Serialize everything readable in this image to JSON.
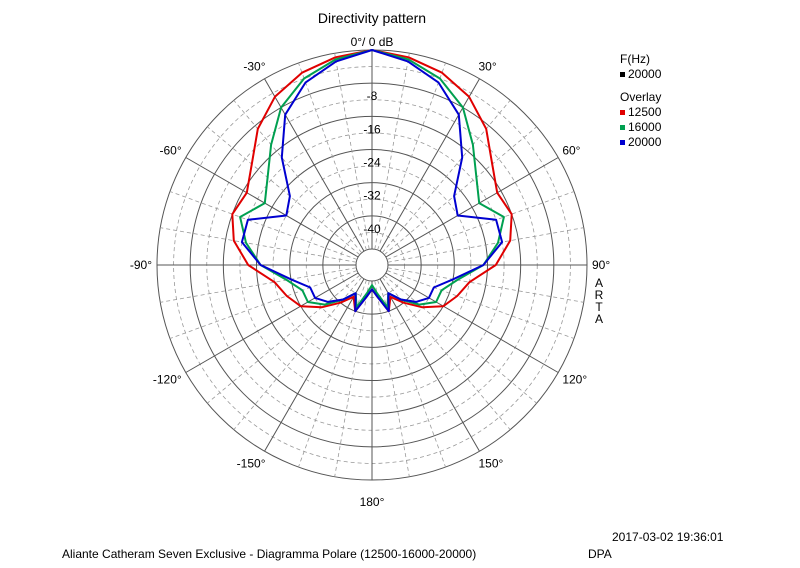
{
  "chart_data": {
    "type": "polar",
    "title": "Directivity pattern",
    "radial_unit": "dB",
    "radial_range": [
      -48,
      0
    ],
    "radial_ticks": [
      {
        "value": 0,
        "label": "0°/ 0 dB"
      },
      {
        "value": -8,
        "label": "-8"
      },
      {
        "value": -16,
        "label": "-16"
      },
      {
        "value": -24,
        "label": "-24"
      },
      {
        "value": -32,
        "label": "-32"
      },
      {
        "value": -40,
        "label": "-40"
      }
    ],
    "angle_ticks": [
      {
        "deg": 30,
        "label": "30°"
      },
      {
        "deg": 60,
        "label": "60°"
      },
      {
        "deg": 90,
        "label": "90°"
      },
      {
        "deg": 120,
        "label": "120°"
      },
      {
        "deg": 150,
        "label": "150°"
      },
      {
        "deg": 180,
        "label": "180°"
      },
      {
        "deg": -150,
        "label": "-150°"
      },
      {
        "deg": -120,
        "label": "-120°"
      },
      {
        "deg": -90,
        "label": "-90°"
      },
      {
        "deg": -60,
        "label": "-60°"
      },
      {
        "deg": -30,
        "label": "-30°"
      }
    ],
    "grid": true,
    "side_label": "ARTA",
    "legend": {
      "position": "top-right",
      "freq_header": "F(Hz)",
      "freq_value": "20000",
      "freq_color": "#000000",
      "overlay_header": "Overlay"
    },
    "angles_deg": [
      0,
      10,
      20,
      30,
      40,
      50,
      60,
      70,
      80,
      90,
      100,
      110,
      120,
      130,
      140,
      150,
      160,
      170,
      180
    ],
    "series": [
      {
        "name": "12500",
        "color": "#e00000",
        "values": [
          0,
          -1,
          -2.5,
          -5,
          -9,
          -14,
          -17,
          -16,
          -18,
          -22,
          -28,
          -30,
          -32,
          -36,
          -40,
          -43,
          -40,
          -44,
          -46
        ]
      },
      {
        "name": "16000",
        "color": "#00a050",
        "values": [
          0,
          -1.5,
          -4,
          -8,
          -14,
          -19,
          -22,
          -18,
          -21,
          -25,
          -31,
          -34,
          -34,
          -37,
          -41,
          -44,
          -41,
          -45,
          -47
        ]
      },
      {
        "name": "20000",
        "color": "#0000d0",
        "values": [
          0,
          -2,
          -5,
          -10,
          -18,
          -26,
          -28,
          -20,
          -20,
          -25,
          -32,
          -36,
          -36,
          -38,
          -41,
          -44,
          -40,
          -44,
          -46
        ]
      }
    ]
  },
  "footer": {
    "timestamp": "2017-03-02  19:36:01",
    "caption": "Aliante Catheram Seven Exclusive - Diagramma Polare (12500-16000-20000)",
    "source": "DPA"
  }
}
